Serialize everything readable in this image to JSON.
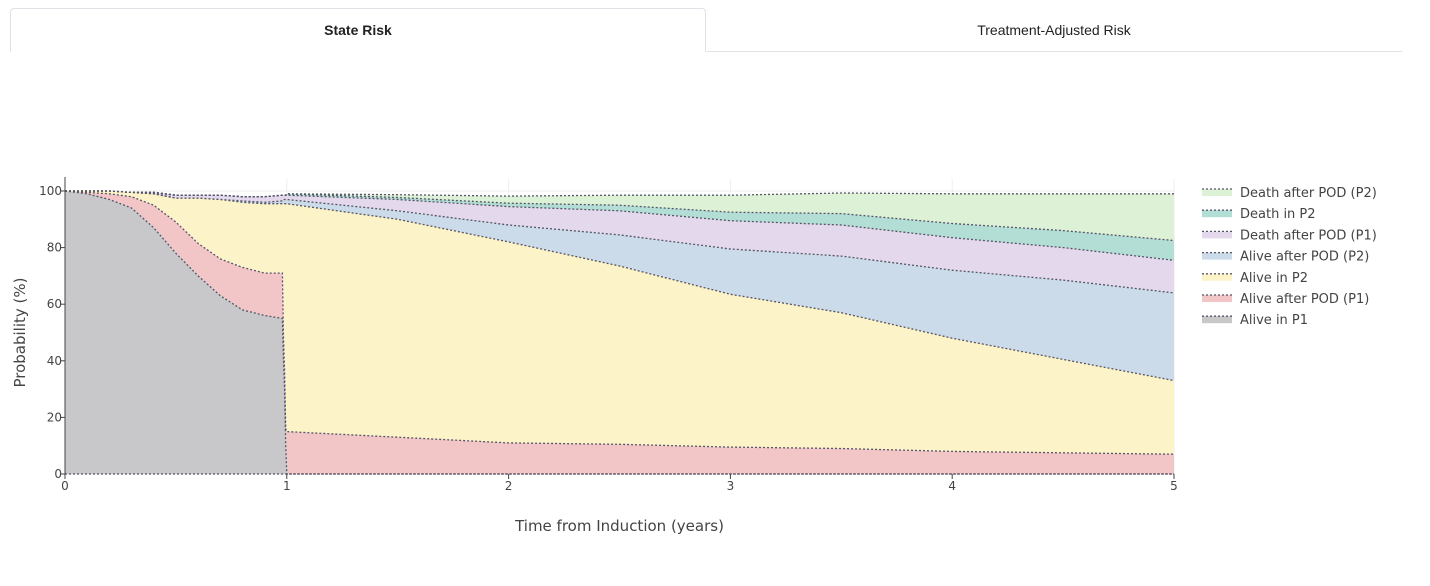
{
  "tabs": [
    {
      "label": "State Risk",
      "active": true
    },
    {
      "label": "Treatment-Adjusted Risk",
      "active": false
    }
  ],
  "chart_data": {
    "type": "area",
    "stacked": true,
    "xlabel": "Time from Induction (years)",
    "ylabel": "Probability (%)",
    "xlim": [
      0,
      5
    ],
    "ylim": [
      0,
      100
    ],
    "xticks": [
      0,
      1,
      2,
      3,
      4,
      5
    ],
    "yticks": [
      0,
      20,
      40,
      60,
      80,
      100
    ],
    "grid": true,
    "legend_position": "right",
    "x": [
      0,
      0.1,
      0.2,
      0.3,
      0.4,
      0.5,
      0.6,
      0.7,
      0.8,
      0.9,
      0.98,
      0.985,
      0.99,
      0.995,
      1.0,
      1.5,
      2.0,
      2.5,
      3.0,
      3.5,
      4.0,
      4.5,
      5.0
    ],
    "series": [
      {
        "name": "Alive in P1",
        "color": "#c8c8ca",
        "values": [
          100,
          99,
          97,
          94,
          87,
          78,
          70,
          63,
          58,
          56,
          55,
          40,
          30,
          10,
          0,
          0,
          0,
          0,
          0,
          0,
          0,
          0,
          0
        ]
      },
      {
        "name": "Alive after POD (P1)",
        "color": "#f2c6c6",
        "values": [
          0,
          0.5,
          2,
          4,
          8,
          11,
          11.5,
          13,
          15,
          15,
          16,
          8,
          6,
          6,
          15,
          13,
          11,
          10.5,
          9.5,
          9,
          8,
          7.5,
          7
        ]
      },
      {
        "name": "Alive in P2",
        "color": "#fcf3c9",
        "values": [
          0,
          0.5,
          1,
          1.5,
          4,
          8.5,
          16,
          21,
          23,
          24.5,
          24.5,
          47.5,
          59.5,
          79.5,
          80.5,
          77,
          71,
          63,
          54,
          48,
          40,
          33,
          26
        ]
      },
      {
        "name": "Alive after POD (P2)",
        "color": "#ccdbe9",
        "values": [
          0,
          0,
          0,
          0,
          0,
          0,
          0,
          0,
          0.5,
          0.5,
          1,
          1.5,
          1.5,
          1.5,
          1.5,
          3,
          6,
          11,
          16,
          20,
          24,
          28,
          31
        ]
      },
      {
        "name": "Death after POD (P1)",
        "color": "#e4d9ec",
        "values": [
          0,
          0,
          0,
          0,
          0.5,
          1,
          1,
          1.5,
          1.5,
          2,
          2,
          1.5,
          1.5,
          1.5,
          1.5,
          4,
          6.5,
          8.5,
          10,
          11,
          11.5,
          11.5,
          11.5
        ]
      },
      {
        "name": "Death in P2",
        "color": "#b3ded6",
        "values": [
          0,
          0,
          0,
          0,
          0,
          0,
          0,
          0,
          0,
          0,
          0,
          0,
          0,
          0,
          0.5,
          0.7,
          1.2,
          2,
          3,
          4,
          5,
          6,
          7
        ]
      },
      {
        "name": "Death after POD (P2)",
        "color": "#dcf1d6",
        "values": [
          0,
          0,
          0,
          0,
          0,
          0,
          0,
          0,
          0,
          0,
          0,
          0,
          0,
          0,
          0,
          1,
          2.5,
          3.5,
          6,
          7.3,
          10.5,
          13,
          16.5
        ]
      }
    ]
  }
}
